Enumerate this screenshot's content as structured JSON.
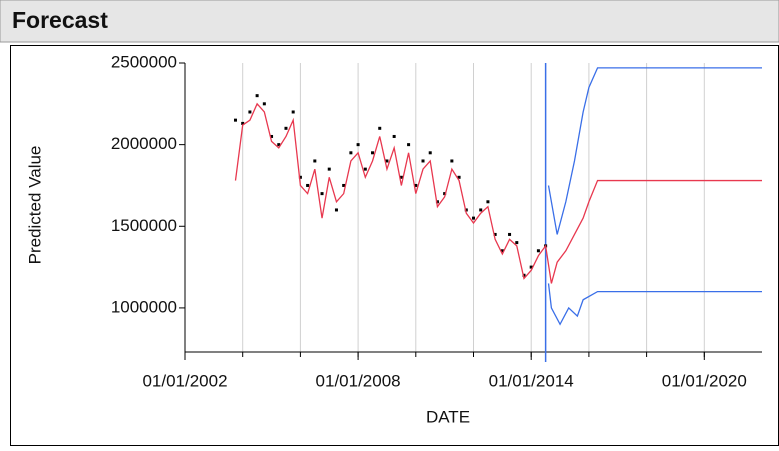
{
  "header": {
    "title": "Forecast"
  },
  "chart_data": {
    "type": "line",
    "x_label": "DATE",
    "y_label": "Predicted Value",
    "xlim": [
      2002,
      2022
    ],
    "ylim": [
      730000,
      2500000
    ],
    "xticks": [
      {
        "value": 2002,
        "label": "01/01/2002"
      },
      {
        "value": 2008,
        "label": "01/01/2008"
      },
      {
        "value": 2014,
        "label": "01/01/2014"
      },
      {
        "value": 2020,
        "label": "01/01/2020"
      }
    ],
    "xgrid": [
      2004,
      2006,
      2008,
      2010,
      2012,
      2014,
      2016,
      2018,
      2020
    ],
    "yticks": [
      1000000,
      1500000,
      2000000,
      2500000
    ],
    "forecast_start": 2014.5,
    "forecast_line_color": "#3a6fe8",
    "series": [
      {
        "mode": "markers",
        "color": "#000000",
        "x": [
          2003.75,
          2004,
          2004.25,
          2004.5,
          2004.75,
          2005,
          2005.25,
          2005.5,
          2005.75,
          2006,
          2006.25,
          2006.5,
          2006.75,
          2007,
          2007.25,
          2007.5,
          2007.75,
          2008,
          2008.25,
          2008.5,
          2008.75,
          2009,
          2009.25,
          2009.5,
          2009.75,
          2010,
          2010.25,
          2010.5,
          2010.75,
          2011,
          2011.25,
          2011.5,
          2011.75,
          2012,
          2012.25,
          2012.5,
          2012.75,
          2013,
          2013.25,
          2013.5,
          2013.75,
          2014,
          2014.25,
          2014.5
        ],
        "values": [
          2150000,
          2130000,
          2200000,
          2300000,
          2250000,
          2050000,
          2000000,
          2100000,
          2200000,
          1800000,
          1750000,
          1900000,
          1700000,
          1850000,
          1600000,
          1750000,
          1950000,
          2000000,
          1850000,
          1950000,
          2100000,
          1900000,
          2050000,
          1800000,
          2000000,
          1750000,
          1900000,
          1950000,
          1650000,
          1700000,
          1900000,
          1800000,
          1600000,
          1550000,
          1600000,
          1650000,
          1450000,
          1350000,
          1450000,
          1400000,
          1200000,
          1250000,
          1350000,
          1380000
        ]
      },
      {
        "mode": "line",
        "color": "#e8384f",
        "x": [
          2003.75,
          2004,
          2004.25,
          2004.5,
          2004.75,
          2005,
          2005.25,
          2005.5,
          2005.75,
          2006,
          2006.25,
          2006.5,
          2006.75,
          2007,
          2007.25,
          2007.5,
          2007.75,
          2008,
          2008.25,
          2008.5,
          2008.75,
          2009,
          2009.25,
          2009.5,
          2009.75,
          2010,
          2010.25,
          2010.5,
          2010.75,
          2011,
          2011.25,
          2011.5,
          2011.75,
          2012,
          2012.25,
          2012.5,
          2012.75,
          2013,
          2013.25,
          2013.5,
          2013.75,
          2014,
          2014.25,
          2014.5,
          2014.7,
          2014.9,
          2015.2,
          2015.5,
          2015.8,
          2016,
          2016.3,
          2022
        ],
        "values": [
          1780000,
          2120000,
          2150000,
          2250000,
          2200000,
          2020000,
          1980000,
          2050000,
          2150000,
          1750000,
          1700000,
          1850000,
          1550000,
          1800000,
          1650000,
          1700000,
          1900000,
          1950000,
          1800000,
          1900000,
          2050000,
          1850000,
          1980000,
          1750000,
          1950000,
          1700000,
          1850000,
          1900000,
          1620000,
          1680000,
          1850000,
          1780000,
          1580000,
          1520000,
          1580000,
          1620000,
          1420000,
          1330000,
          1420000,
          1380000,
          1180000,
          1230000,
          1320000,
          1380000,
          1150000,
          1280000,
          1350000,
          1450000,
          1550000,
          1650000,
          1780000,
          1780000
        ]
      },
      {
        "mode": "line",
        "color": "#3a6fe8",
        "x": [
          2014.6,
          2014.9,
          2015.2,
          2015.5,
          2015.8,
          2016,
          2016.3,
          2022
        ],
        "values": [
          1750000,
          1450000,
          1650000,
          1900000,
          2200000,
          2350000,
          2470000,
          2470000
        ]
      },
      {
        "mode": "line",
        "color": "#3a6fe8",
        "x": [
          2014.6,
          2014.7,
          2015,
          2015.3,
          2015.6,
          2015.8,
          2016.3,
          2022
        ],
        "values": [
          1150000,
          1000000,
          900000,
          1000000,
          950000,
          1050000,
          1100000,
          1100000
        ]
      }
    ]
  }
}
